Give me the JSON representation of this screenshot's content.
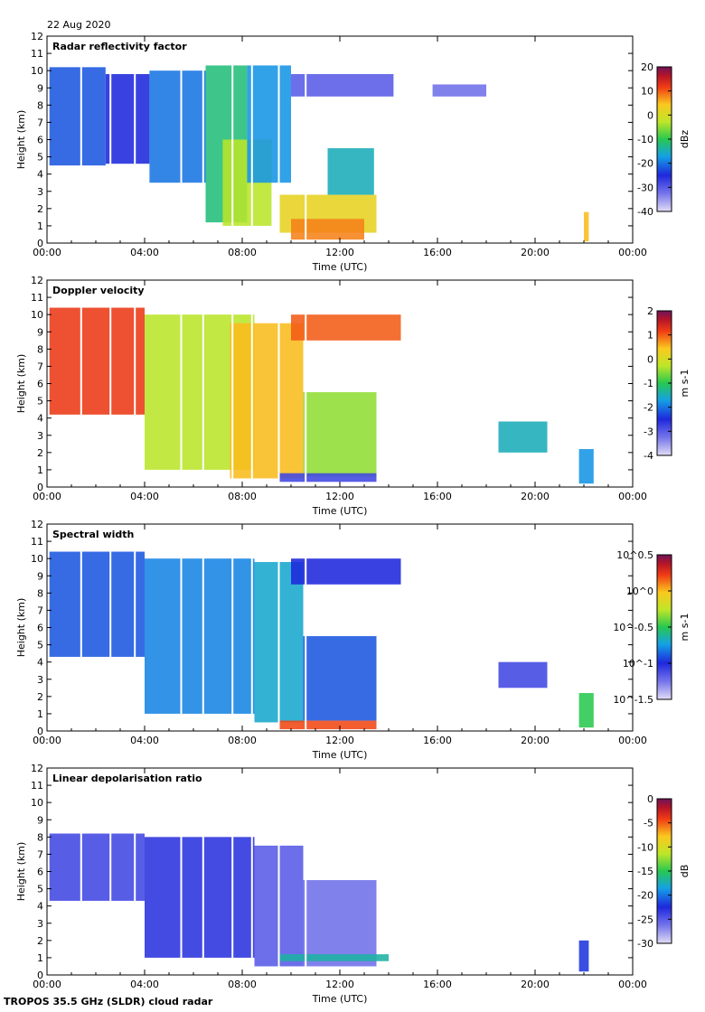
{
  "date": "22 Aug 2020",
  "footer": "TROPOS 35.5 GHz (SLDR) cloud radar",
  "chart_data": [
    {
      "type": "heatmap",
      "title": "Radar reflectivity factor",
      "xlabel": "Time (UTC)",
      "ylabel": "Height (km)",
      "x_ticks": [
        "00:00",
        "04:00",
        "08:00",
        "12:00",
        "16:00",
        "20:00",
        "00:00"
      ],
      "xlim_hours": [
        0,
        24
      ],
      "y_ticks": [
        "0",
        "1",
        "2",
        "3",
        "4",
        "5",
        "6",
        "7",
        "8",
        "9",
        "10",
        "11",
        "12"
      ],
      "ylim_km": [
        0,
        12
      ],
      "colorbar_label": "dBz",
      "colorbar_ticks": [
        "20",
        "10",
        "0",
        "-10",
        "-20",
        "-30",
        "-40"
      ],
      "colorbar_range": [
        -40,
        20
      ],
      "gap_lines_hours": [
        1.4,
        2.6,
        3.6,
        5.5,
        6.4,
        7.6,
        8.4,
        9.5,
        10.6
      ],
      "regions": [
        {
          "t0": 0.1,
          "t1": 2.4,
          "b0": 4.5,
          "b1": 10.2,
          "value": -22
        },
        {
          "t0": 2.4,
          "t1": 4.2,
          "b0": 4.6,
          "b1": 9.8,
          "value": -25
        },
        {
          "t0": 4.2,
          "t1": 6.5,
          "b0": 3.5,
          "b1": 10.0,
          "value": -20
        },
        {
          "t0": 6.5,
          "t1": 8.2,
          "b0": 1.2,
          "b1": 10.3,
          "value": -12
        },
        {
          "t0": 7.2,
          "t1": 9.2,
          "b0": 1.0,
          "b1": 6.0,
          "value": -3
        },
        {
          "t0": 8.2,
          "t1": 10.0,
          "b0": 3.5,
          "b1": 10.3,
          "value": -18
        },
        {
          "t0": 9.5,
          "t1": 13.5,
          "b0": 0.6,
          "b1": 2.8,
          "value": 2
        },
        {
          "t0": 10.0,
          "t1": 13.0,
          "b0": 0.2,
          "b1": 1.4,
          "value": 8
        },
        {
          "t0": 11.5,
          "t1": 13.4,
          "b0": 2.8,
          "b1": 5.5,
          "value": -15
        },
        {
          "t0": 10.0,
          "t1": 14.2,
          "b0": 8.5,
          "b1": 9.8,
          "value": -30
        },
        {
          "t0": 15.8,
          "t1": 18.0,
          "b0": 8.5,
          "b1": 9.2,
          "value": -32
        },
        {
          "t0": 22.0,
          "t1": 22.2,
          "b0": 0.1,
          "b1": 1.8,
          "value": 5
        }
      ]
    },
    {
      "type": "heatmap",
      "title": "Doppler velocity",
      "xlabel": "Time (UTC)",
      "ylabel": "Height (km)",
      "x_ticks": [
        "00:00",
        "04:00",
        "08:00",
        "12:00",
        "16:00",
        "20:00",
        "00:00"
      ],
      "xlim_hours": [
        0,
        24
      ],
      "y_ticks": [
        "0",
        "1",
        "2",
        "3",
        "4",
        "5",
        "6",
        "7",
        "8",
        "9",
        "10",
        "11",
        "12"
      ],
      "ylim_km": [
        0,
        12
      ],
      "colorbar_label": "m s-1",
      "colorbar_ticks": [
        "2",
        "1",
        "0",
        "-1",
        "-2",
        "-3",
        "-4"
      ],
      "colorbar_range": [
        -4,
        2
      ],
      "gap_lines_hours": [
        1.4,
        2.6,
        3.6,
        5.5,
        6.4,
        7.6,
        8.4,
        9.5,
        10.6
      ],
      "regions": [
        {
          "t0": 0.1,
          "t1": 4.0,
          "b0": 4.2,
          "b1": 10.4,
          "value": 1.2
        },
        {
          "t0": 4.0,
          "t1": 8.5,
          "b0": 1.0,
          "b1": 10.0,
          "value": -0.3
        },
        {
          "t0": 7.5,
          "t1": 10.5,
          "b0": 0.5,
          "b1": 9.5,
          "value": 0.5
        },
        {
          "t0": 10.5,
          "t1": 13.5,
          "b0": 0.6,
          "b1": 5.5,
          "value": -0.5
        },
        {
          "t0": 10.0,
          "t1": 14.5,
          "b0": 8.5,
          "b1": 10.0,
          "value": 1.0
        },
        {
          "t0": 9.5,
          "t1": 13.5,
          "b0": 0.3,
          "b1": 0.8,
          "value": -2.8
        },
        {
          "t0": 18.5,
          "t1": 20.5,
          "b0": 2.0,
          "b1": 3.8,
          "value": -1.5
        },
        {
          "t0": 21.8,
          "t1": 22.4,
          "b0": 0.2,
          "b1": 2.2,
          "value": -1.8
        }
      ]
    },
    {
      "type": "heatmap",
      "title": "Spectral width",
      "xlabel": "Time (UTC)",
      "ylabel": "Height (km)",
      "x_ticks": [
        "00:00",
        "04:00",
        "08:00",
        "12:00",
        "16:00",
        "20:00",
        "00:00"
      ],
      "xlim_hours": [
        0,
        24
      ],
      "y_ticks": [
        "0",
        "1",
        "2",
        "3",
        "4",
        "5",
        "6",
        "7",
        "8",
        "9",
        "10",
        "11",
        "12"
      ],
      "ylim_km": [
        0,
        12
      ],
      "colorbar_label": "m s-1",
      "colorbar_ticks": [
        "10^0.5",
        "10^0",
        "10^-0.5",
        "10^-1",
        "10^-1.5"
      ],
      "colorbar_range": [
        -1.5,
        0.5
      ],
      "gap_lines_hours": [
        1.4,
        2.6,
        3.6,
        5.5,
        6.4,
        7.6,
        8.4,
        9.5,
        10.6
      ],
      "regions": [
        {
          "t0": 0.1,
          "t1": 4.0,
          "b0": 4.3,
          "b1": 10.4,
          "value": -0.9
        },
        {
          "t0": 4.0,
          "t1": 8.5,
          "b0": 1.0,
          "b1": 10.0,
          "value": -0.8
        },
        {
          "t0": 8.5,
          "t1": 10.5,
          "b0": 0.5,
          "b1": 9.8,
          "value": -0.7
        },
        {
          "t0": 10.5,
          "t1": 13.5,
          "b0": 0.6,
          "b1": 5.5,
          "value": -0.9
        },
        {
          "t0": 9.5,
          "t1": 13.5,
          "b0": 0.1,
          "b1": 0.6,
          "value": 0.2
        },
        {
          "t0": 10.0,
          "t1": 14.5,
          "b0": 8.5,
          "b1": 10.0,
          "value": -1.0
        },
        {
          "t0": 18.5,
          "t1": 20.5,
          "b0": 2.5,
          "b1": 4.0,
          "value": -1.1
        },
        {
          "t0": 21.8,
          "t1": 22.4,
          "b0": 0.2,
          "b1": 2.2,
          "value": -0.5
        }
      ]
    },
    {
      "type": "heatmap",
      "title": "Linear depolarisation ratio",
      "xlabel": "Time (UTC)",
      "ylabel": "Height (km)",
      "x_ticks": [
        "00:00",
        "04:00",
        "08:00",
        "12:00",
        "16:00",
        "20:00",
        "00:00"
      ],
      "xlim_hours": [
        0,
        24
      ],
      "y_ticks": [
        "0",
        "1",
        "2",
        "3",
        "4",
        "5",
        "6",
        "7",
        "8",
        "9",
        "10",
        "11",
        "12"
      ],
      "ylim_km": [
        0,
        12
      ],
      "colorbar_label": "dB",
      "colorbar_ticks": [
        "0",
        "-5",
        "-10",
        "-15",
        "-20",
        "-25",
        "-30"
      ],
      "colorbar_range": [
        -30,
        0
      ],
      "gap_lines_hours": [
        1.4,
        2.6,
        3.6,
        5.5,
        6.4,
        7.6,
        8.4,
        9.5,
        10.6
      ],
      "regions": [
        {
          "t0": 0.1,
          "t1": 4.0,
          "b0": 4.3,
          "b1": 8.2,
          "value": -24
        },
        {
          "t0": 4.0,
          "t1": 8.5,
          "b0": 1.0,
          "b1": 8.0,
          "value": -23
        },
        {
          "t0": 8.5,
          "t1": 10.5,
          "b0": 0.5,
          "b1": 7.5,
          "value": -25
        },
        {
          "t0": 10.5,
          "t1": 13.5,
          "b0": 0.5,
          "b1": 5.5,
          "value": -26
        },
        {
          "t0": 9.5,
          "t1": 14.0,
          "b0": 0.8,
          "b1": 1.2,
          "value": -17
        },
        {
          "t0": 21.8,
          "t1": 22.2,
          "b0": 0.2,
          "b1": 2.0,
          "value": -22
        }
      ]
    }
  ]
}
